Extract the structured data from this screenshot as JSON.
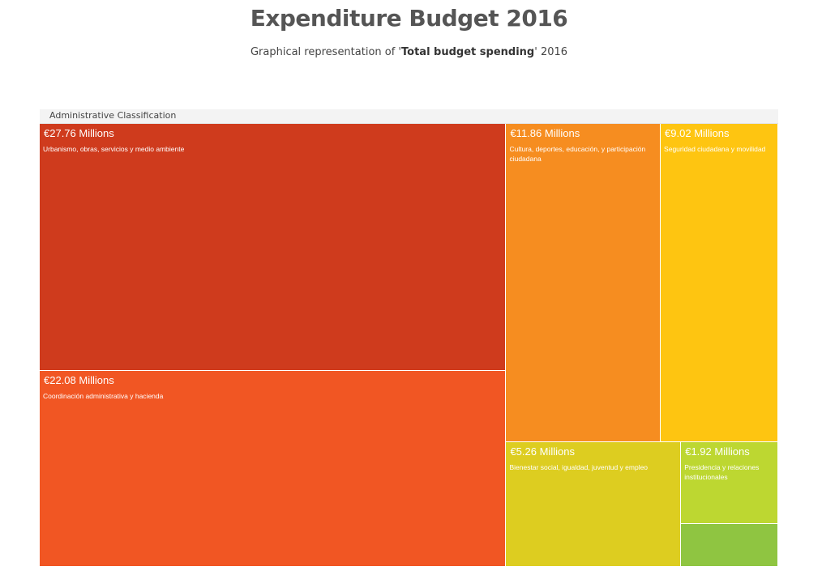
{
  "header": {
    "title": "Expenditure Budget 2016",
    "subtitle_prefix": "Graphical representation of '",
    "subtitle_bold": "Total budget spending",
    "subtitle_suffix": "' 2016"
  },
  "breadcrumb": {
    "label": "Administrative Classification"
  },
  "chart_data": {
    "type": "treemap",
    "title": "Expenditure Budget 2016",
    "unit": "€ Millions",
    "items": [
      {
        "label": "€27.76 Millions",
        "name": "Urbanismo, obras, servicios y medio ambiente",
        "value": 27.76,
        "color": "#cf3b1d"
      },
      {
        "label": "€22.08 Millions",
        "name": "Coordinación administrativa y hacienda",
        "value": 22.08,
        "color": "#f15623"
      },
      {
        "label": "€11.86 Millions",
        "name": "Cultura, deportes, educación, y participación ciudadana",
        "value": 11.86,
        "color": "#f68d20"
      },
      {
        "label": "€9.02 Millions",
        "name": "Seguridad ciudadana y movilidad",
        "value": 9.02,
        "color": "#fec511"
      },
      {
        "label": "€5.26 Millions",
        "name": "Bienestar social, igualdad, juventud y empleo",
        "value": 5.26,
        "color": "#ddcd20"
      },
      {
        "label": "€1.92 Millions",
        "name": "Presidencia y relaciones institucionales",
        "value": 1.92,
        "color": "#bdd731"
      },
      {
        "label": "",
        "name": "",
        "value": 1.0,
        "color": "#8fc541"
      }
    ]
  }
}
